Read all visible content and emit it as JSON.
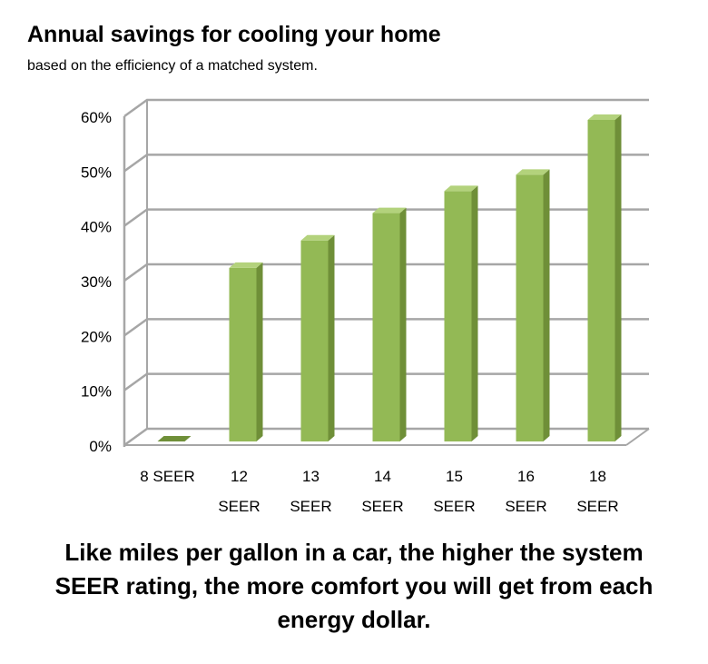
{
  "title": "Annual savings for cooling your home",
  "subtitle": "based on the efficiency of a matched system.",
  "caption": "Like miles per gallon in a car, the higher the system SEER rating, the more comfort you will get from each energy dollar.",
  "colors": {
    "bar_front": "#93b955",
    "bar_side": "#6f8f38",
    "bar_top": "#b3d27c",
    "grid": "#a6a6a6"
  },
  "chart_data": {
    "type": "bar",
    "title": "Annual savings for cooling your home",
    "subtitle": "based on the efficiency of a matched system.",
    "categories": [
      [
        "8 SEER"
      ],
      [
        "12",
        "SEER"
      ],
      [
        "13",
        "SEER"
      ],
      [
        "14",
        "SEER"
      ],
      [
        "15",
        "SEER"
      ],
      [
        "16",
        "SEER"
      ],
      [
        "18",
        "SEER"
      ]
    ],
    "values": [
      0,
      33,
      38,
      43,
      47,
      50,
      60
    ],
    "ylim": [
      0,
      60
    ],
    "yticks": [
      "0%",
      "10%",
      "20%",
      "30%",
      "40%",
      "50%",
      "60%"
    ],
    "ytick_values": [
      0,
      10,
      20,
      30,
      40,
      50,
      60
    ],
    "grid": true,
    "three_d": true
  }
}
